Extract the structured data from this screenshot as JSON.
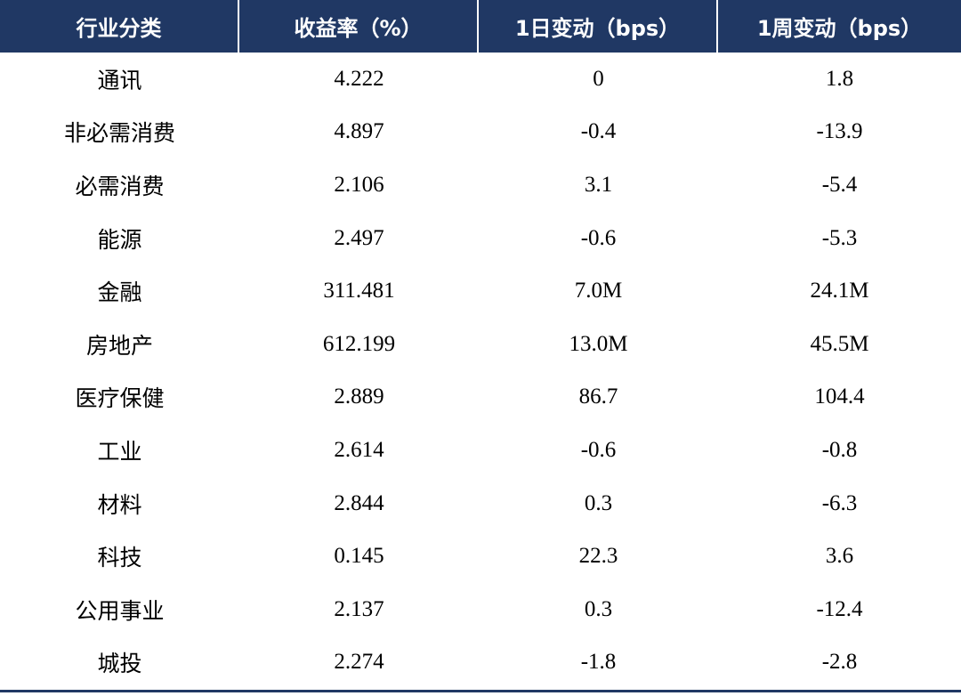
{
  "table": {
    "headers": [
      "行业分类",
      "收益率（%）",
      "1日变动（bps）",
      "1周变动（bps）"
    ],
    "rows": [
      {
        "category": "通讯",
        "yield": "4.222",
        "d1": "0",
        "w1": "1.8"
      },
      {
        "category": "非必需消费",
        "yield": "4.897",
        "d1": "-0.4",
        "w1": "-13.9"
      },
      {
        "category": "必需消费",
        "yield": "2.106",
        "d1": "3.1",
        "w1": "-5.4"
      },
      {
        "category": "能源",
        "yield": "2.497",
        "d1": "-0.6",
        "w1": "-5.3"
      },
      {
        "category": "金融",
        "yield": "311.481",
        "d1": "7.0M",
        "w1": "24.1M"
      },
      {
        "category": "房地产",
        "yield": "612.199",
        "d1": "13.0M",
        "w1": "45.5M"
      },
      {
        "category": "医疗保健",
        "yield": "2.889",
        "d1": "86.7",
        "w1": "104.4"
      },
      {
        "category": "工业",
        "yield": "2.614",
        "d1": "-0.6",
        "w1": "-0.8"
      },
      {
        "category": "材料",
        "yield": "2.844",
        "d1": "0.3",
        "w1": "-6.3"
      },
      {
        "category": "科技",
        "yield": "0.145",
        "d1": "22.3",
        "w1": "3.6"
      },
      {
        "category": "公用事业",
        "yield": "2.137",
        "d1": "0.3",
        "w1": "-12.4"
      },
      {
        "category": "城投",
        "yield": "2.274",
        "d1": "-1.8",
        "w1": "-2.8"
      }
    ]
  },
  "colors": {
    "header_bg": "#203864",
    "header_text": "#ffffff",
    "body_text": "#000000"
  }
}
